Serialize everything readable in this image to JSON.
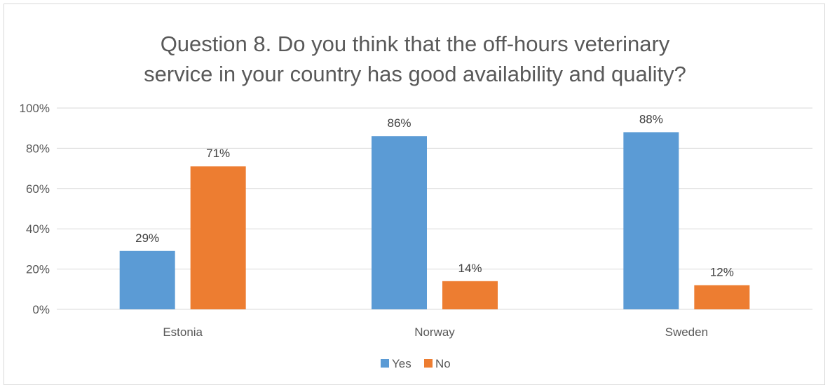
{
  "chart_data": {
    "type": "bar",
    "title_lines": [
      "Question 8. Do you think that the off-hours veterinary",
      "service in your country has good availability and quality?"
    ],
    "categories": [
      "Estonia",
      "Norway",
      "Sweden"
    ],
    "series": [
      {
        "name": "Yes",
        "color": "#5b9bd5",
        "values": [
          29,
          86,
          88
        ],
        "labels": [
          "29%",
          "86%",
          "88%"
        ]
      },
      {
        "name": "No",
        "color": "#ed7d31",
        "values": [
          71,
          14,
          12
        ],
        "labels": [
          "71%",
          "14%",
          "12%"
        ]
      }
    ],
    "ylim": [
      0,
      100
    ],
    "yticks": [
      0,
      20,
      40,
      60,
      80,
      100
    ],
    "ytick_labels": [
      "0%",
      "20%",
      "40%",
      "60%",
      "80%",
      "100%"
    ],
    "grid": true,
    "legend_position": "bottom"
  }
}
